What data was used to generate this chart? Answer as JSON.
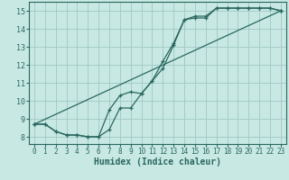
{
  "xlabel": "Humidex (Indice chaleur)",
  "bg_color": "#c8e8e4",
  "grid_color": "#a0c8c4",
  "line_color": "#2a6860",
  "spine_color": "#2a6860",
  "xlim": [
    -0.5,
    23.5
  ],
  "ylim": [
    7.6,
    15.5
  ],
  "xticks": [
    0,
    1,
    2,
    3,
    4,
    5,
    6,
    7,
    8,
    9,
    10,
    11,
    12,
    13,
    14,
    15,
    16,
    17,
    18,
    19,
    20,
    21,
    22,
    23
  ],
  "yticks": [
    8,
    9,
    10,
    11,
    12,
    13,
    14,
    15
  ],
  "line1_x": [
    0,
    1,
    2,
    3,
    4,
    5,
    6,
    7,
    8,
    9,
    10,
    11,
    12,
    13,
    14,
    15,
    16,
    17,
    18,
    19,
    20,
    21,
    22,
    23
  ],
  "line1_y": [
    8.7,
    8.7,
    8.3,
    8.1,
    8.1,
    8.0,
    8.0,
    8.4,
    9.6,
    9.6,
    10.4,
    11.1,
    11.8,
    13.1,
    14.5,
    14.6,
    14.6,
    15.15,
    15.15,
    15.15,
    15.15,
    15.15,
    15.15,
    15.0
  ],
  "line2_x": [
    0,
    1,
    2,
    3,
    4,
    5,
    6,
    7,
    8,
    9,
    10,
    11,
    12,
    13,
    14,
    15,
    16,
    17,
    18,
    19,
    20,
    21,
    22,
    23
  ],
  "line2_y": [
    8.7,
    8.7,
    8.3,
    8.1,
    8.1,
    8.0,
    8.0,
    9.5,
    10.3,
    10.5,
    10.4,
    11.1,
    12.2,
    13.2,
    14.5,
    14.7,
    14.7,
    15.15,
    15.15,
    15.15,
    15.15,
    15.15,
    15.15,
    15.0
  ],
  "line3_x": [
    0,
    23
  ],
  "line3_y": [
    8.7,
    15.0
  ],
  "xlabel_fontsize": 7,
  "tick_fontsize": 5.5,
  "linewidth": 0.9,
  "markersize": 3.5
}
